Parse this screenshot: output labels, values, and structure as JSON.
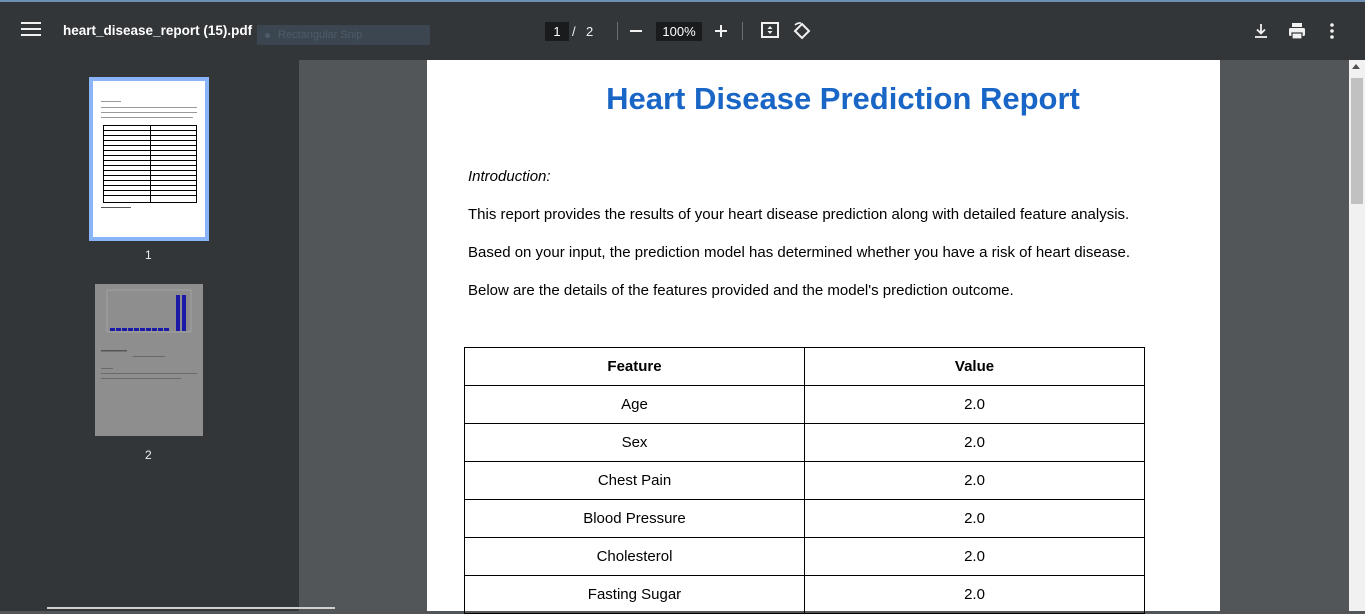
{
  "toolbar": {
    "file_name": "heart_disease_report (15).pdf",
    "snip_label": "Rectangular Snip",
    "current_page": "1",
    "page_separator": "/",
    "total_pages": "2",
    "zoom": "100%",
    "icons": [
      "menu-icon",
      "zoom-out-icon",
      "zoom-in-icon",
      "fit-page-icon",
      "rotate-icon",
      "download-icon",
      "print-icon",
      "more-vert-icon"
    ]
  },
  "sidebar": {
    "thumbnails": [
      {
        "label": "1"
      },
      {
        "label": "2"
      }
    ]
  },
  "document": {
    "title": "Heart Disease Prediction Report",
    "intro_label": "Introduction:",
    "paragraphs": [
      "This report provides the results of your heart disease prediction along with detailed feature analysis.",
      "Based on your input, the prediction model has determined whether you have a risk of heart disease.",
      "Below are the details of the features provided and the model's prediction outcome."
    ],
    "table": {
      "headers": [
        "Feature",
        "Value"
      ],
      "rows": [
        [
          "Age",
          "2.0"
        ],
        [
          "Sex",
          "2.0"
        ],
        [
          "Chest Pain",
          "2.0"
        ],
        [
          "Blood Pressure",
          "2.0"
        ],
        [
          "Cholesterol",
          "2.0"
        ],
        [
          "Fasting Sugar",
          "2.0"
        ]
      ]
    }
  },
  "colors": {
    "toolbar_bg": "#323639",
    "viewer_bg": "#525659",
    "title_blue": "#1a66c6",
    "thumb_selected": "#8ab4f8"
  }
}
